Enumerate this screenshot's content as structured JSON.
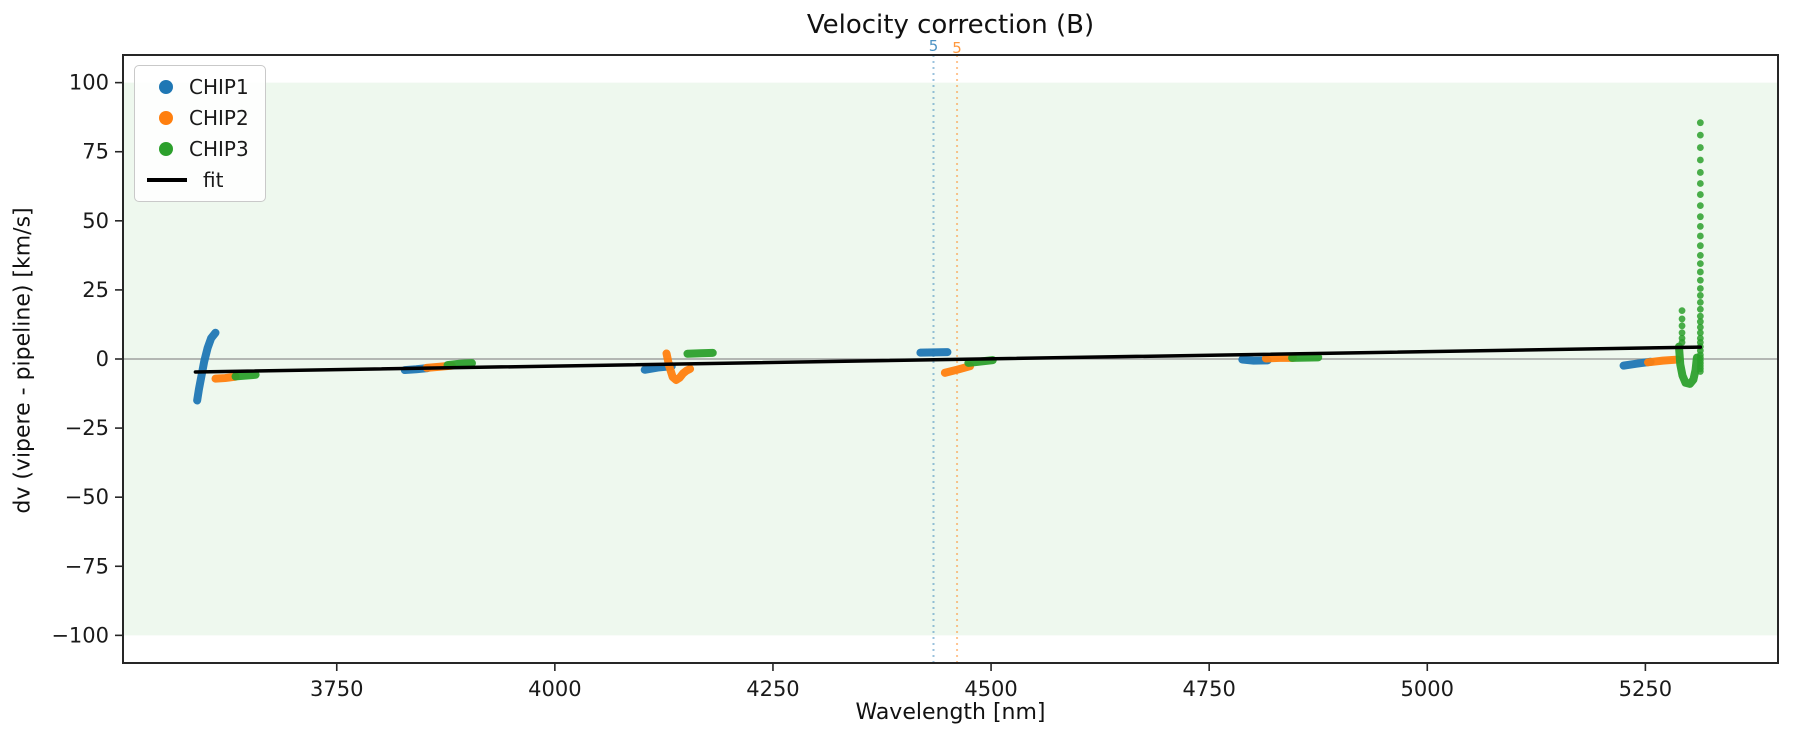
{
  "figure": {
    "background": "#ffffff",
    "band_color": "#2ca02c",
    "band_alpha": 0.08,
    "spine_color": "#262626",
    "tick_color": "#262626",
    "zero_line_color": "#909090"
  },
  "legend": {
    "entries": [
      {
        "label": "CHIP1",
        "color": "#1f77b4",
        "marker": "dot"
      },
      {
        "label": "CHIP2",
        "color": "#ff7f0e",
        "marker": "dot"
      },
      {
        "label": "CHIP3",
        "color": "#2ca02c",
        "marker": "dot"
      },
      {
        "label": "fit",
        "color": "#000000",
        "marker": "line"
      }
    ]
  },
  "chart_data": {
    "type": "scatter",
    "title": "Velocity correction (B)",
    "xlabel": "Wavelength [nm]",
    "ylabel": "dv (vipere - pipeline) [km/s]",
    "xlim": [
      3505,
      5402
    ],
    "ylim": [
      -110,
      110
    ],
    "xticks": {
      "values": [
        3750,
        4000,
        4250,
        4500,
        4750,
        5000,
        5250
      ],
      "labels": [
        "3750",
        "4000",
        "4250",
        "4500",
        "4750",
        "5000",
        "5250"
      ]
    },
    "yticks": {
      "values": [
        100,
        75,
        50,
        25,
        0,
        -25,
        -50,
        -75,
        -100
      ],
      "labels": [
        "100",
        "75",
        "50",
        "25",
        "0",
        "−25",
        "−50",
        "−75",
        "−100"
      ]
    },
    "shaded_band": {
      "ymin": -100,
      "ymax": 100
    },
    "zero_line_y": 0,
    "vlines": [
      {
        "x": 4434,
        "label": "5",
        "color": "#1f77b4"
      },
      {
        "x": 4461,
        "label": "5",
        "color": "#ff7f0e"
      }
    ],
    "fit": {
      "name": "fit",
      "color": "#000000",
      "points": [
        [
          3588,
          -4.7
        ],
        [
          5313,
          4.3
        ]
      ]
    },
    "series": [
      {
        "name": "CHIP1",
        "color": "#1f77b4",
        "dense_segments": [
          [
            [
              3590,
              -15
            ],
            [
              3592,
              -11
            ],
            [
              3595,
              -6
            ],
            [
              3598,
              -1
            ],
            [
              3602,
              4
            ],
            [
              3606,
              7.5
            ],
            [
              3611,
              9.5
            ]
          ],
          [
            [
              3828,
              -4.0
            ],
            [
              3841,
              -3.7
            ],
            [
              3854,
              -3.3
            ]
          ],
          [
            [
              4103,
              -3.9
            ],
            [
              4118,
              -3.1
            ],
            [
              4134,
              -2.6
            ]
          ],
          [
            [
              4419,
              2.3
            ],
            [
              4450,
              2.5
            ]
          ],
          [
            [
              4788,
              -0.2
            ],
            [
              4801,
              -0.6
            ],
            [
              4817,
              -0.5
            ]
          ],
          [
            [
              5225,
              -2.4
            ],
            [
              5240,
              -1.7
            ],
            [
              5256,
              -1.0
            ]
          ]
        ],
        "dot_columns": []
      },
      {
        "name": "CHIP2",
        "color": "#ff7f0e",
        "dense_segments": [
          [
            [
              3611,
              -7.1
            ],
            [
              3622,
              -6.9
            ],
            [
              3634,
              -6.4
            ]
          ],
          [
            [
              3853,
              -3.2
            ],
            [
              3868,
              -2.8
            ],
            [
              3882,
              -2.4
            ]
          ],
          [
            [
              4128,
              2.0
            ],
            [
              4131,
              -2.5
            ],
            [
              4135,
              -6.5
            ],
            [
              4139,
              -7.6
            ],
            [
              4143,
              -6.8
            ],
            [
              4147,
              -5.2
            ],
            [
              4151,
              -4.2
            ],
            [
              4155,
              -3.6
            ]
          ],
          [
            [
              4447,
              -5.0
            ],
            [
              4461,
              -3.9
            ],
            [
              4476,
              -2.6
            ]
          ],
          [
            [
              4815,
              0.2
            ],
            [
              4831,
              0.4
            ],
            [
              4846,
              0.4
            ]
          ],
          [
            [
              5253,
              -1.2
            ],
            [
              5270,
              -0.6
            ],
            [
              5287,
              -0.2
            ]
          ]
        ],
        "dot_columns": []
      },
      {
        "name": "CHIP3",
        "color": "#2ca02c",
        "dense_segments": [
          [
            [
              3634,
              -6.3
            ],
            [
              3645,
              -6.0
            ],
            [
              3657,
              -5.7
            ]
          ],
          [
            [
              3877,
              -2.2
            ],
            [
              3891,
              -1.7
            ],
            [
              3905,
              -1.5
            ]
          ],
          [
            [
              4152,
              1.9
            ],
            [
              4167,
              2.1
            ],
            [
              4181,
              2.2
            ]
          ],
          [
            [
              4474,
              -1.4
            ],
            [
              4488,
              -0.9
            ],
            [
              4502,
              -0.4
            ]
          ],
          [
            [
              4845,
              0.4
            ],
            [
              4860,
              0.5
            ],
            [
              4875,
              0.6
            ]
          ],
          [
            [
              5288.5,
              4.5
            ],
            [
              5290,
              -2
            ],
            [
              5292.5,
              -6
            ],
            [
              5296,
              -8.6
            ],
            [
              5301,
              -9
            ],
            [
              5305,
              -7.5
            ],
            [
              5307.5,
              -4
            ],
            [
              5309,
              0.5
            ]
          ]
        ],
        "dot_columns": [
          {
            "x": 5313,
            "ys": [
              85.5,
              81,
              76.5,
              72,
              67.5,
              63.5,
              59.5,
              55.5,
              51.5,
              48,
              44.5,
              41,
              37.5,
              34.5,
              31.5,
              28.5,
              25.5,
              23,
              20.5,
              18,
              15.5,
              13.5,
              11.5,
              9.5,
              7.5,
              6,
              4.5,
              3,
              1.5,
              0.5,
              -0.5,
              -1.5,
              -2.5,
              -3.5,
              -4.5
            ]
          },
          {
            "x": 5292,
            "ys": [
              17.5,
              14.5,
              12,
              9.5,
              7.5,
              6
            ]
          }
        ]
      }
    ]
  }
}
